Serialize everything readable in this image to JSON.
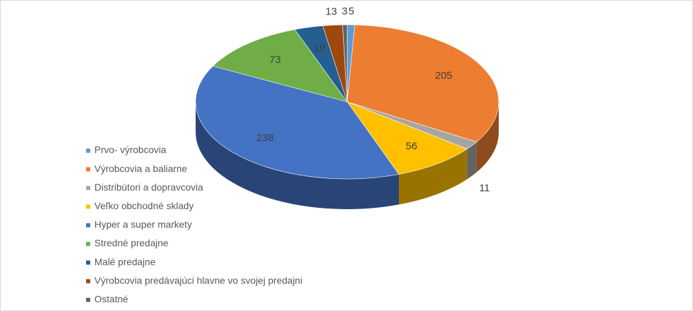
{
  "chart_data": {
    "type": "pie",
    "categories": [
      "Prvo- výrobcovia",
      "Výrobcovia a baliarne",
      "Distribútori a dopravcovia",
      "Veľko obchodné sklady",
      "Hyper a super markety",
      "Stredné predajne",
      "Malé  predajne",
      "Výrobcovia predávajúci hlavne vo svojej predajni",
      "Ostatné"
    ],
    "values": [
      5,
      205,
      11,
      56,
      238,
      73,
      19,
      13,
      3
    ],
    "colors": [
      "#5b9bd5",
      "#ed7d31",
      "#a5a5a5",
      "#ffc000",
      "#4472c4",
      "#70ad47",
      "#255e91",
      "#9e480e",
      "#636363"
    ],
    "legend": "left"
  }
}
